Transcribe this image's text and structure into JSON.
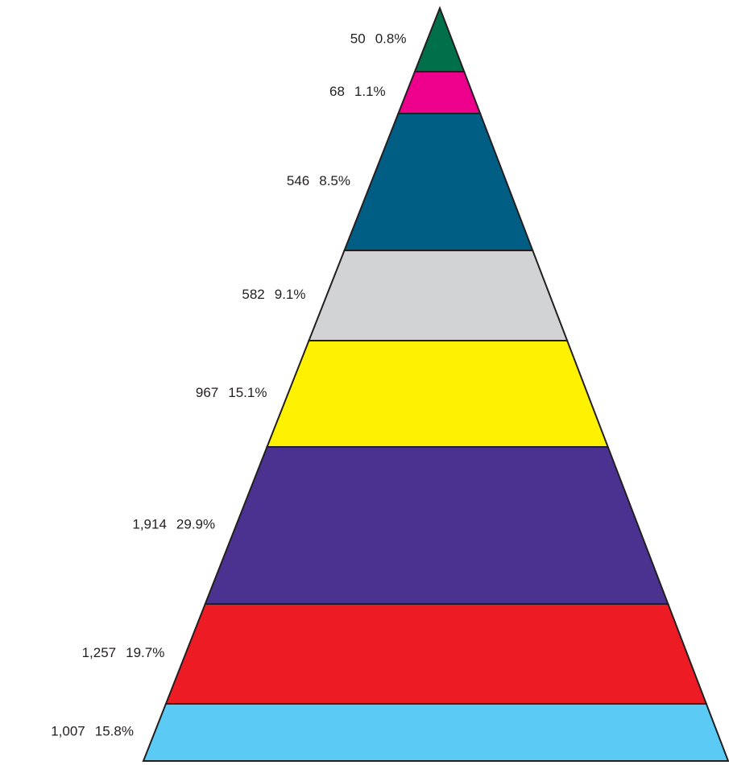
{
  "chart_data": {
    "type": "pyramid",
    "values": [
      50,
      68,
      546,
      582,
      967,
      1914,
      1257,
      1007
    ],
    "value_labels": [
      "50",
      "68",
      "546",
      "582",
      "967",
      "1,914",
      "1,257",
      "1,007"
    ],
    "percentages": [
      0.8,
      1.1,
      8.5,
      9.1,
      15.1,
      29.9,
      19.7,
      15.8
    ],
    "percentage_labels": [
      "0.8%",
      "1.1%",
      "8.5%",
      "9.1%",
      "15.1%",
      "29.9%",
      "19.7%",
      "15.8%"
    ],
    "colors": [
      "#00704a",
      "#ec008c",
      "#005e85",
      "#d1d3d4",
      "#fff200",
      "#4b3190",
      "#ed1c24",
      "#5bcbf5"
    ]
  }
}
